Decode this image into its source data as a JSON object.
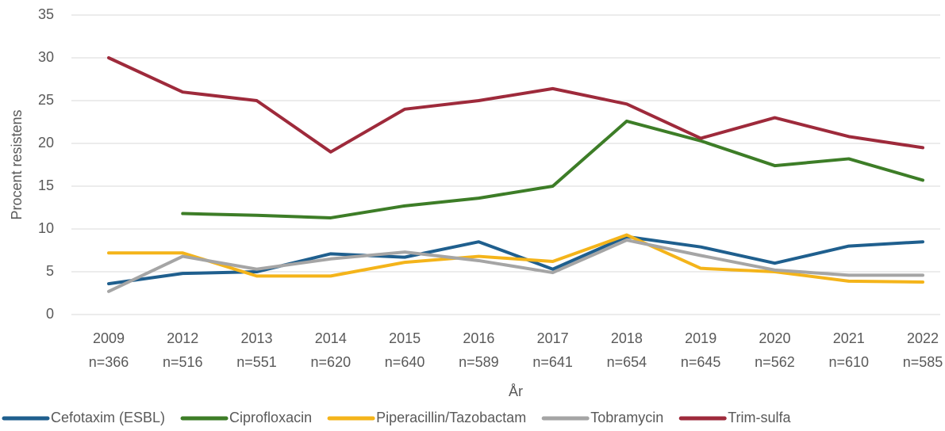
{
  "chart_data": {
    "type": "line",
    "y_label": "Procent resistens",
    "x_label": "År",
    "categories": [
      [
        "2009",
        "n=366"
      ],
      [
        "2012",
        "n=516"
      ],
      [
        "2013",
        "n=551"
      ],
      [
        "2014",
        "n=620"
      ],
      [
        "2015",
        "n=640"
      ],
      [
        "2016",
        "n=589"
      ],
      [
        "2017",
        "n=641"
      ],
      [
        "2018",
        "n=654"
      ],
      [
        "2019",
        "n=645"
      ],
      [
        "2020",
        "n=562"
      ],
      [
        "2021",
        "n=610"
      ],
      [
        "2022",
        "n=585"
      ]
    ],
    "series": [
      {
        "name": "Cefotaxim (ESBL)",
        "color": "#1f5f8e",
        "values": [
          3.6,
          4.8,
          5.0,
          7.1,
          6.7,
          8.5,
          5.3,
          9.1,
          7.9,
          6.0,
          8.0,
          8.5
        ]
      },
      {
        "name": "Ciprofloxacin",
        "color": "#3d7d27",
        "values": [
          null,
          11.8,
          11.6,
          11.3,
          12.7,
          13.6,
          15.0,
          22.6,
          20.3,
          17.4,
          18.2,
          15.7
        ]
      },
      {
        "name": "Piperacillin/Tazobactam",
        "color": "#f4b41a",
        "values": [
          7.2,
          7.2,
          4.5,
          4.5,
          6.1,
          6.8,
          6.2,
          9.3,
          5.4,
          5.0,
          3.9,
          3.8
        ]
      },
      {
        "name": "Tobramycin",
        "color": "#a5a5a5",
        "values": [
          2.7,
          6.8,
          5.3,
          6.5,
          7.3,
          6.3,
          4.9,
          8.7,
          6.9,
          5.2,
          4.6,
          4.6
        ]
      },
      {
        "name": "Trim-sulfa",
        "color": "#9e2a3b",
        "values": [
          30.0,
          26.0,
          25.0,
          19.0,
          24.0,
          25.0,
          26.4,
          24.6,
          20.6,
          23.0,
          20.8,
          19.5
        ]
      }
    ],
    "ylim": [
      0,
      35
    ],
    "yticks": [
      0,
      5,
      10,
      15,
      20,
      25,
      30,
      35
    ],
    "grid": true,
    "legend": "bottom"
  }
}
